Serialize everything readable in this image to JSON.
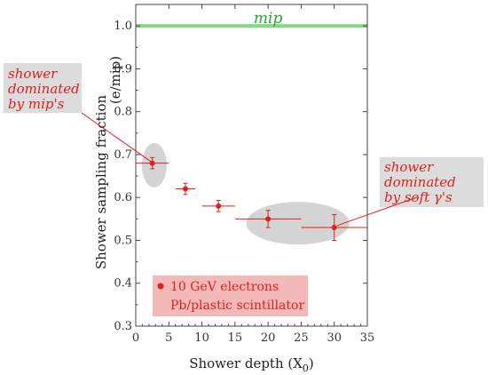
{
  "colors": {
    "data": "#e0201b",
    "mip_line": "#7fdc7f",
    "mip_text": "#22aa22",
    "annotation_box": "#dcdcdc",
    "highlight": "#d4d4d4",
    "legend_box": "#f3b9b9"
  },
  "chart_data": {
    "type": "scatter",
    "xlabel": "Shower depth (X",
    "xlabel_sub": "0",
    "xlabel_close": ")",
    "ylabel": "Shower sampling fraction",
    "ylabel_unit": "(e/mip)",
    "xlim": [
      0,
      35
    ],
    "ylim": [
      0.3,
      1.05
    ],
    "x_ticks": [
      "0",
      "5",
      "10",
      "15",
      "20",
      "25",
      "30",
      "35"
    ],
    "y_ticks": [
      "0.3",
      "0.4",
      "0.5",
      "0.6",
      "0.7",
      "0.8",
      "0.9",
      "1.0"
    ],
    "reference_line": {
      "y": 1.0,
      "label": "mip"
    },
    "points": [
      {
        "x": 2.5,
        "y": 0.68,
        "xerr": 2.5,
        "yerr": 0.013
      },
      {
        "x": 7.5,
        "y": 0.62,
        "xerr": 1.5,
        "yerr": 0.013
      },
      {
        "x": 12.5,
        "y": 0.58,
        "xerr": 2.5,
        "yerr": 0.013
      },
      {
        "x": 20.0,
        "y": 0.55,
        "xerr": 5.0,
        "yerr": 0.02
      },
      {
        "x": 30.0,
        "y": 0.53,
        "xerr": 5.0,
        "yerr": 0.03
      }
    ],
    "legend": {
      "line1": "10 GeV electrons",
      "line2": "Pb/plastic scintillator"
    },
    "annotations": [
      {
        "lines": [
          "shower",
          "dominated",
          "by mip's"
        ]
      },
      {
        "lines": [
          "shower",
          "dominated",
          "by soft γ's"
        ]
      }
    ]
  }
}
